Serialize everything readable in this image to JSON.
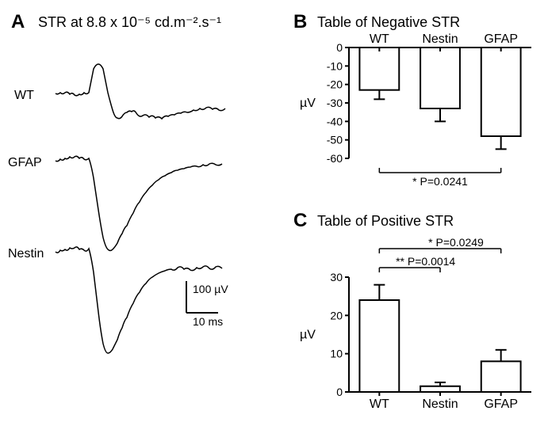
{
  "panelA": {
    "label": "A",
    "label_fontsize": 24,
    "title": "STR at 8.8 x 10⁻⁵ cd.m⁻².s⁻¹",
    "title_fontsize": 18,
    "traces": [
      {
        "label": "WT",
        "y_offset": 70
      },
      {
        "label": "GFAP",
        "y_offset": 155
      },
      {
        "label": "Nestin",
        "y_offset": 270
      }
    ],
    "scale_bar": {
      "y_label": "100 µV",
      "x_label": "10 ms"
    },
    "stroke_color": "#000000",
    "stroke_width": 1.5
  },
  "panelB": {
    "label": "B",
    "label_fontsize": 24,
    "title": "Table of Negative STR",
    "title_fontsize": 18,
    "type": "bar",
    "categories": [
      "WT",
      "Nestin",
      "GFAP"
    ],
    "values": [
      -23,
      -33,
      -48
    ],
    "errors": [
      5,
      7,
      7
    ],
    "ylabel": "µV",
    "ylim": [
      -60,
      0
    ],
    "ytick_step": 10,
    "bar_fill": "#ffffff",
    "bar_stroke": "#000000",
    "bar_stroke_width": 2,
    "axis_color": "#000000",
    "text_color": "#000000",
    "label_fontsize_axis": 16,
    "tick_fontsize": 14,
    "sig": {
      "text": "* P=0.0241",
      "from": 0,
      "to": 2
    }
  },
  "panelC": {
    "label": "C",
    "label_fontsize": 24,
    "title": "Table of Positive STR",
    "title_fontsize": 18,
    "type": "bar",
    "categories": [
      "WT",
      "Nestin",
      "GFAP"
    ],
    "values": [
      24,
      1.5,
      8
    ],
    "errors": [
      4,
      1,
      3
    ],
    "ylabel": "µV",
    "ylim": [
      0,
      30
    ],
    "ytick_step": 10,
    "bar_fill": "#ffffff",
    "bar_stroke": "#000000",
    "bar_stroke_width": 2,
    "axis_color": "#000000",
    "text_color": "#000000",
    "label_fontsize_axis": 16,
    "tick_fontsize": 14,
    "sig1": {
      "text": "** P=0.0014",
      "from": 0,
      "to": 1
    },
    "sig2": {
      "text": "* P=0.0249",
      "from": 0,
      "to": 2
    }
  }
}
